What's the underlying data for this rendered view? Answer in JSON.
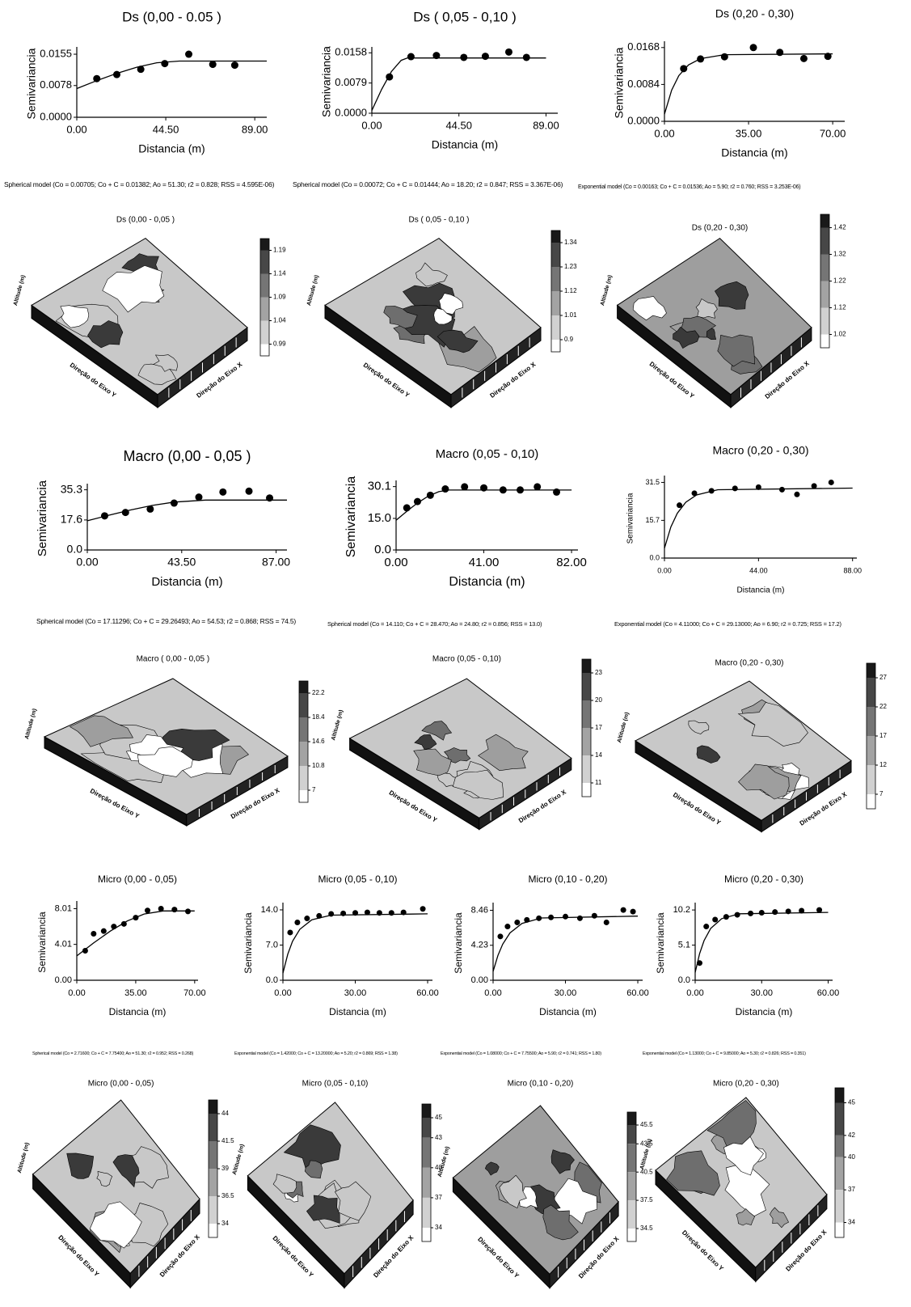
{
  "chart_data": [
    {
      "type": "scatter",
      "title": "Ds (0,00 - 0.05 )",
      "xlabel": "Distancia (m)",
      "ylabel": "Semivariancia",
      "xlim": [
        0,
        95
      ],
      "ylim": [
        0,
        0.0165
      ],
      "xticks": [
        {
          "value": 0,
          "label": "0.00"
        },
        {
          "value": 44.5,
          "label": "44.50"
        },
        {
          "value": 89,
          "label": "89.00"
        }
      ],
      "yticks": [
        {
          "value": 0,
          "label": "0.0000"
        },
        0.0078,
        0.0155
      ],
      "points": {
        "x": [
          10,
          20,
          32,
          44,
          56,
          68,
          79
        ],
        "y": [
          0.0095,
          0.0105,
          0.0118,
          0.0132,
          0.0155,
          0.013,
          0.0128
        ]
      },
      "curve": {
        "x": [
          0,
          10,
          20,
          30,
          40,
          51.3,
          95
        ],
        "y": [
          0.00705,
          0.009,
          0.0108,
          0.0123,
          0.0134,
          0.01382,
          0.01382
        ]
      },
      "caption": "Spherical model (Co = 0.00705; Co + C = 0.01382; Ao = 51.30; r2 = 0.828; RSS = 4.595E-06)"
    },
    {
      "type": "scatter",
      "title": "Ds ( 0,05 - 0,10 )",
      "xlabel": "Distancia (m)",
      "ylabel": "Semivariancia",
      "xlim": [
        0,
        95
      ],
      "ylim": [
        0,
        0.0165
      ],
      "xticks": [
        {
          "value": 0,
          "label": "0.00"
        },
        {
          "value": 44.5,
          "label": "44.50"
        },
        {
          "value": 89,
          "label": "89.00"
        }
      ],
      "yticks": [
        {
          "value": 0,
          "label": "0.0000"
        },
        0.0079,
        0.0158
      ],
      "points": {
        "x": [
          9,
          20,
          33,
          47,
          58,
          70,
          79
        ],
        "y": [
          0.0095,
          0.0148,
          0.0151,
          0.0146,
          0.0149,
          0.016,
          0.0146
        ]
      },
      "curve": {
        "x": [
          0,
          5,
          10,
          15,
          18.2,
          89
        ],
        "y": [
          0.00072,
          0.00624,
          0.0109,
          0.01384,
          0.01444,
          0.01444
        ]
      },
      "caption": "Spherical model (Co = 0.00072; Co + C = 0.01444; Ao = 18.20; r2 = 0.847; RSS = 3.367E-06)"
    },
    {
      "type": "scatter",
      "title": "Ds (0,20 - 0,30)",
      "xlabel": "Distancia (m)",
      "ylabel": "Semivariancia",
      "xlim": [
        0,
        75
      ],
      "ylim": [
        0,
        0.0175
      ],
      "xticks": [
        {
          "value": 0,
          "label": "0.00"
        },
        {
          "value": 35,
          "label": "35.00"
        },
        {
          "value": 70,
          "label": "70.00"
        }
      ],
      "yticks": [
        {
          "value": 0,
          "label": "0.0000"
        },
        0.0084,
        0.0168
      ],
      "points": {
        "x": [
          8,
          15,
          25,
          37,
          48,
          58,
          68
        ],
        "y": [
          0.012,
          0.0142,
          0.0147,
          0.0168,
          0.0157,
          0.0143,
          0.0148
        ]
      },
      "curve": {
        "x": [
          0,
          3,
          6,
          10,
          15,
          25,
          70
        ],
        "y": [
          0.00163,
          0.0071,
          0.0104,
          0.01284,
          0.01428,
          0.01517,
          0.01536
        ]
      },
      "caption": "Exponential model (Co = 0.00163; Co + C = 0.01536; Ao = 5.90; r2 = 0.760; RSS = 3.253E-06)"
    },
    {
      "type": "surface",
      "title": "Ds (0,00 - 0,05 )",
      "zlabel": "Altitude (m)",
      "xlabel": "Direção do Eixo X",
      "ylabel": "Direção do Eixo Y",
      "colorbar_ticks": [
        1.19,
        1.14,
        1.09,
        1.04,
        0.99
      ]
    },
    {
      "type": "surface",
      "title": "Ds ( 0,05 - 0,10 )",
      "zlabel": "Altitude (m)",
      "xlabel": "Direção do Eixo X",
      "ylabel": "Direção do Eixo Y",
      "colorbar_ticks": [
        1.34,
        1.23,
        1.12,
        1.01,
        0.9
      ]
    },
    {
      "type": "surface",
      "title": "Ds (0,20 - 0,30)",
      "zlabel": "Altitude (m)",
      "xlabel": "Direção do Eixo X",
      "ylabel": "Direção do Eixo Y",
      "colorbar_ticks": [
        1.42,
        1.32,
        1.22,
        1.12,
        1.02
      ]
    },
    {
      "type": "scatter",
      "title": "Macro (0,00 - 0,05 )",
      "xlabel": "Distancia (m)",
      "ylabel": "Semivariancia",
      "xlim": [
        0,
        92
      ],
      "ylim": [
        0,
        37
      ],
      "xticks": [
        {
          "value": 0,
          "label": "0.00"
        },
        {
          "value": 43.5,
          "label": "43.50"
        },
        {
          "value": 87,
          "label": "87.00"
        }
      ],
      "yticks": [
        {
          "value": 0,
          "label": "0.0"
        },
        17.6,
        35.3
      ],
      "points": {
        "x": [
          8,
          17.6,
          29,
          40,
          51.4,
          62.5,
          74.5,
          84
        ],
        "y": [
          20,
          22,
          24,
          27.5,
          31,
          34,
          34.5,
          30.5
        ]
      },
      "curve": {
        "x": [
          0,
          10,
          20,
          30,
          40,
          54.53,
          92
        ],
        "y": [
          17.11,
          20.41,
          23.49,
          26.13,
          28.08,
          29.26,
          29.26
        ]
      },
      "caption": "Spherical model (Co = 17.11296; Co + C = 29.26493; Ao = 54.53; r2 = 0.868; RSS = 74.5)"
    },
    {
      "type": "scatter",
      "title": "Macro (0,05 - 0,10)",
      "xlabel": "Distancia (m)",
      "ylabel": "Semivariancia",
      "xlim": [
        0,
        85
      ],
      "ylim": [
        0,
        31.5
      ],
      "xticks": [
        {
          "value": 0,
          "label": "0.00"
        },
        {
          "value": 41,
          "label": "41.00"
        },
        {
          "value": 82,
          "label": "82.00"
        }
      ],
      "yticks": [
        {
          "value": 0,
          "label": "0.0"
        },
        {
          "value": 15,
          "label": "15.0"
        },
        30.1
      ],
      "points": {
        "x": [
          5,
          10,
          16,
          23,
          32,
          41,
          50,
          58,
          66,
          75
        ],
        "y": [
          20,
          23,
          26,
          29,
          30,
          29.5,
          28.5,
          28.5,
          30,
          27.5
        ]
      },
      "curve": {
        "x": [
          0,
          5,
          10,
          15,
          20,
          24.8,
          82
        ],
        "y": [
          14.11,
          18.36,
          22.32,
          25.55,
          27.71,
          28.47,
          28.47
        ]
      },
      "caption": "Spherical model (Co = 14.110; Co + C = 28.470; Ao = 24.80; r2 = 0.856; RSS = 13.0)"
    },
    {
      "type": "scatter",
      "title": "Macro (0,20 - 0,30)",
      "xlabel": "Distancia (m)",
      "ylabel": "Semivariancia",
      "xlim": [
        0,
        90
      ],
      "ylim": [
        0,
        33
      ],
      "xticks": [
        {
          "value": 0,
          "label": "0.00"
        },
        {
          "value": 44,
          "label": "44.00"
        },
        {
          "value": 88,
          "label": "88.00"
        }
      ],
      "yticks": [
        {
          "value": 0,
          "label": "0.0"
        },
        15.7,
        31.5
      ],
      "points": {
        "x": [
          7,
          14,
          22,
          33,
          44,
          55,
          62,
          70,
          78
        ],
        "y": [
          22,
          27,
          28,
          29,
          29.5,
          28.5,
          26.5,
          30,
          31.5
        ]
      },
      "curve": {
        "x": [
          0,
          3,
          6,
          10,
          15,
          25,
          88
        ],
        "y": [
          4.11,
          12.94,
          18.65,
          23.25,
          26.28,
          28.46,
          29.13
        ]
      },
      "caption": "Exponential model (Co = 4.11000; Co + C = 29.13000; Ao = 6.90; r2 = 0.725; RSS = 17.2)"
    },
    {
      "type": "surface",
      "title": "Macro ( 0,00 - 0,05 )",
      "zlabel": "Altitude (m)",
      "xlabel": "Direção do Eixo X",
      "ylabel": "Direção do Eixo Y",
      "colorbar_ticks": [
        22.2,
        18.4,
        14.6,
        10.8,
        7
      ]
    },
    {
      "type": "surface",
      "title": "Macro (0,05 - 0,10)",
      "zlabel": "Altitude (m)",
      "xlabel": "Direção do Eixo X",
      "ylabel": "Direção do Eixo Y",
      "colorbar_ticks": [
        23,
        20,
        17,
        14,
        11
      ]
    },
    {
      "type": "surface",
      "title": "Macro (0,20 - 0,30)",
      "zlabel": "Altitude (m)",
      "xlabel": "Direção do Eixo X",
      "ylabel": "Direção do Eixo Y",
      "colorbar_ticks": [
        27,
        22,
        17,
        12,
        7
      ]
    },
    {
      "type": "scatter",
      "title": "Micro (0,00 - 0,05)",
      "xlabel": "Distancia (m)",
      "ylabel": "Semivariancia",
      "xlim": [
        0,
        72
      ],
      "ylim": [
        0,
        8.5
      ],
      "xticks": [
        {
          "value": 0,
          "label": "0.00"
        },
        {
          "value": 35,
          "label": "35.00"
        },
        {
          "value": 70,
          "label": "70.00"
        }
      ],
      "yticks": [
        {
          "value": 0,
          "label": "0.00"
        },
        4.01,
        8.01
      ],
      "points": {
        "x": [
          5,
          10,
          16,
          22,
          28,
          35,
          42,
          50,
          58,
          66
        ],
        "y": [
          3.3,
          5.2,
          5.5,
          6,
          6.3,
          7,
          7.8,
          8,
          7.9,
          7.7
        ]
      },
      "curve": {
        "x": [
          0,
          10,
          20,
          30,
          40,
          51.3,
          70
        ],
        "y": [
          2.72,
          4.17,
          5.51,
          6.63,
          7.41,
          7.75,
          7.75
        ]
      },
      "caption": "Spherical model (Co = 2.71600; Co + C = 7.75400; Ao = 51.30; r2 = 0.952; RSS = 0.268)"
    },
    {
      "type": "scatter",
      "title": "Micro (0,05 - 0,10)",
      "xlabel": "Distancia (m)",
      "ylabel": "Semivariancia",
      "xlim": [
        0,
        62
      ],
      "ylim": [
        0,
        14.8
      ],
      "xticks": [
        {
          "value": 0,
          "label": "0.00"
        },
        {
          "value": 30,
          "label": "30.00"
        },
        {
          "value": 60,
          "label": "60.00"
        }
      ],
      "yticks": [
        {
          "value": 0,
          "label": "0.0"
        },
        {
          "value": 7,
          "label": "7.0"
        },
        {
          "value": 14,
          "label": "14.0"
        }
      ],
      "points": {
        "x": [
          3,
          6,
          10,
          15,
          20,
          25,
          30,
          35,
          40,
          45,
          50,
          58
        ],
        "y": [
          9.5,
          11.5,
          12.3,
          12.8,
          13.2,
          13.3,
          13.4,
          13.5,
          13.4,
          13.4,
          13.5,
          14.2
        ]
      },
      "curve": {
        "x": [
          0,
          2,
          4,
          7,
          12,
          20,
          60
        ],
        "y": [
          1.42,
          5.18,
          7.75,
          10.14,
          12.03,
          12.95,
          13.2
        ]
      },
      "caption": "Exponential model (Co = 1.42000; Co + C = 13.20000; Ao = 5.20; r2 = 0.869; RSS = 1.38)"
    },
    {
      "type": "scatter",
      "title": "Micro (0,10 - 0,20)",
      "xlabel": "Distancia (m)",
      "ylabel": "Semivariancia",
      "xlim": [
        0,
        62
      ],
      "ylim": [
        0,
        9
      ],
      "xticks": [
        {
          "value": 0,
          "label": "0.00"
        },
        {
          "value": 30,
          "label": "30.00"
        },
        {
          "value": 60,
          "label": "60.00"
        }
      ],
      "yticks": [
        {
          "value": 0,
          "label": "0.00"
        },
        4.23,
        8.46
      ],
      "points": {
        "x": [
          3,
          6,
          10,
          14,
          19,
          24,
          30,
          36,
          42,
          47,
          54,
          58
        ],
        "y": [
          5.3,
          6.5,
          7,
          7.3,
          7.5,
          7.6,
          7.7,
          7.5,
          7.8,
          7,
          8.5,
          8.3
        ]
      },
      "curve": {
        "x": [
          0,
          2,
          4,
          7,
          12,
          20,
          60
        ],
        "y": [
          1.08,
          3,
          4.36,
          5.72,
          6.88,
          7.53,
          7.755
        ]
      },
      "caption": "Exponential model (Co = 1.08000; Co + C = 7.75500; Ao = 5.90; r2 = 0.741; RSS = 1.80)"
    },
    {
      "type": "scatter",
      "title": "Micro (0,20 - 0,30)",
      "xlabel": "Distancia (m)",
      "ylabel": "Semivariancia",
      "xlim": [
        0,
        62
      ],
      "ylim": [
        0,
        10.8
      ],
      "xticks": [
        {
          "value": 0,
          "label": "0.00"
        },
        {
          "value": 30,
          "label": "30.00"
        },
        {
          "value": 60,
          "label": "60.00"
        }
      ],
      "yticks": [
        {
          "value": 0,
          "label": "0.0"
        },
        5.1,
        10.2
      ],
      "points": {
        "x": [
          2,
          5,
          9,
          14,
          19,
          25,
          30,
          36,
          42,
          48,
          56
        ],
        "y": [
          2.5,
          7.8,
          8.8,
          9.2,
          9.5,
          9.7,
          9.8,
          9.9,
          10,
          10.1,
          10.2
        ]
      },
      "curve": {
        "x": [
          0,
          2,
          4,
          7,
          12,
          20,
          60
        ],
        "y": [
          1.13,
          3.87,
          5.75,
          7.52,
          8.94,
          9.65,
          9.85
        ]
      },
      "caption": "Exponential model (Co = 1.13000; Co + C = 9.85000; Ao = 5.30; r2 = 0.826; RSS = 0.351)"
    },
    {
      "type": "surface",
      "title": "Micro (0,00 - 0,05)",
      "zlabel": "Altitude (m)",
      "xlabel": "Direção do Eixo X",
      "ylabel": "Direção do Eixo Y",
      "colorbar_ticks": [
        44,
        41.5,
        39,
        36.5,
        34
      ]
    },
    {
      "type": "surface",
      "title": "Micro (0,05 - 0,10)",
      "zlabel": "Altitude (m)",
      "xlabel": "Direção do Eixo X",
      "ylabel": "Direção do Eixo Y",
      "colorbar_ticks": [
        45,
        43,
        40,
        37,
        34
      ]
    },
    {
      "type": "surface",
      "title": "Micro (0,10 - 0,20)",
      "zlabel": "Altitude (m)",
      "xlabel": "Direção do Eixo X",
      "ylabel": "Direção do Eixo Y",
      "colorbar_ticks": [
        45.5,
        43.5,
        40.5,
        37.5,
        34.5
      ]
    },
    {
      "type": "surface",
      "title": "Micro (0,20 - 0,30)",
      "zlabel": "Altitude (m)",
      "xlabel": "Direção do Eixo X",
      "ylabel": "Direção do Eixo Y",
      "colorbar_ticks": [
        45,
        42,
        40,
        37,
        34
      ]
    }
  ]
}
